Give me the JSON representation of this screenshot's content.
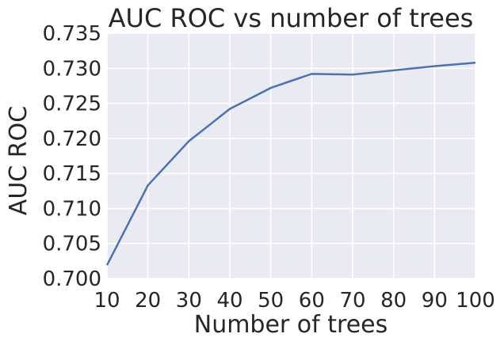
{
  "chart_data": {
    "type": "line",
    "title": "AUC ROC vs number of trees",
    "xlabel": "Number of trees",
    "ylabel": "AUC ROC",
    "x": [
      10,
      20,
      30,
      40,
      50,
      60,
      70,
      80,
      90,
      100
    ],
    "series": [
      {
        "values": [
          0.7019,
          0.7133,
          0.7196,
          0.7242,
          0.7272,
          0.7292,
          0.7291,
          0.7297,
          0.7303,
          0.7308
        ]
      }
    ],
    "xlim": [
      10,
      100
    ],
    "ylim": [
      0.7,
      0.735
    ],
    "xticks": [
      "10",
      "20",
      "30",
      "40",
      "50",
      "60",
      "70",
      "80",
      "90",
      "100"
    ],
    "yticks": [
      "0.700",
      "0.705",
      "0.710",
      "0.715",
      "0.720",
      "0.725",
      "0.730",
      "0.735"
    ],
    "grid": true,
    "colors": {
      "background": "#eaeaf2",
      "grid": "#ffffff",
      "line": "#4c72b0"
    }
  }
}
